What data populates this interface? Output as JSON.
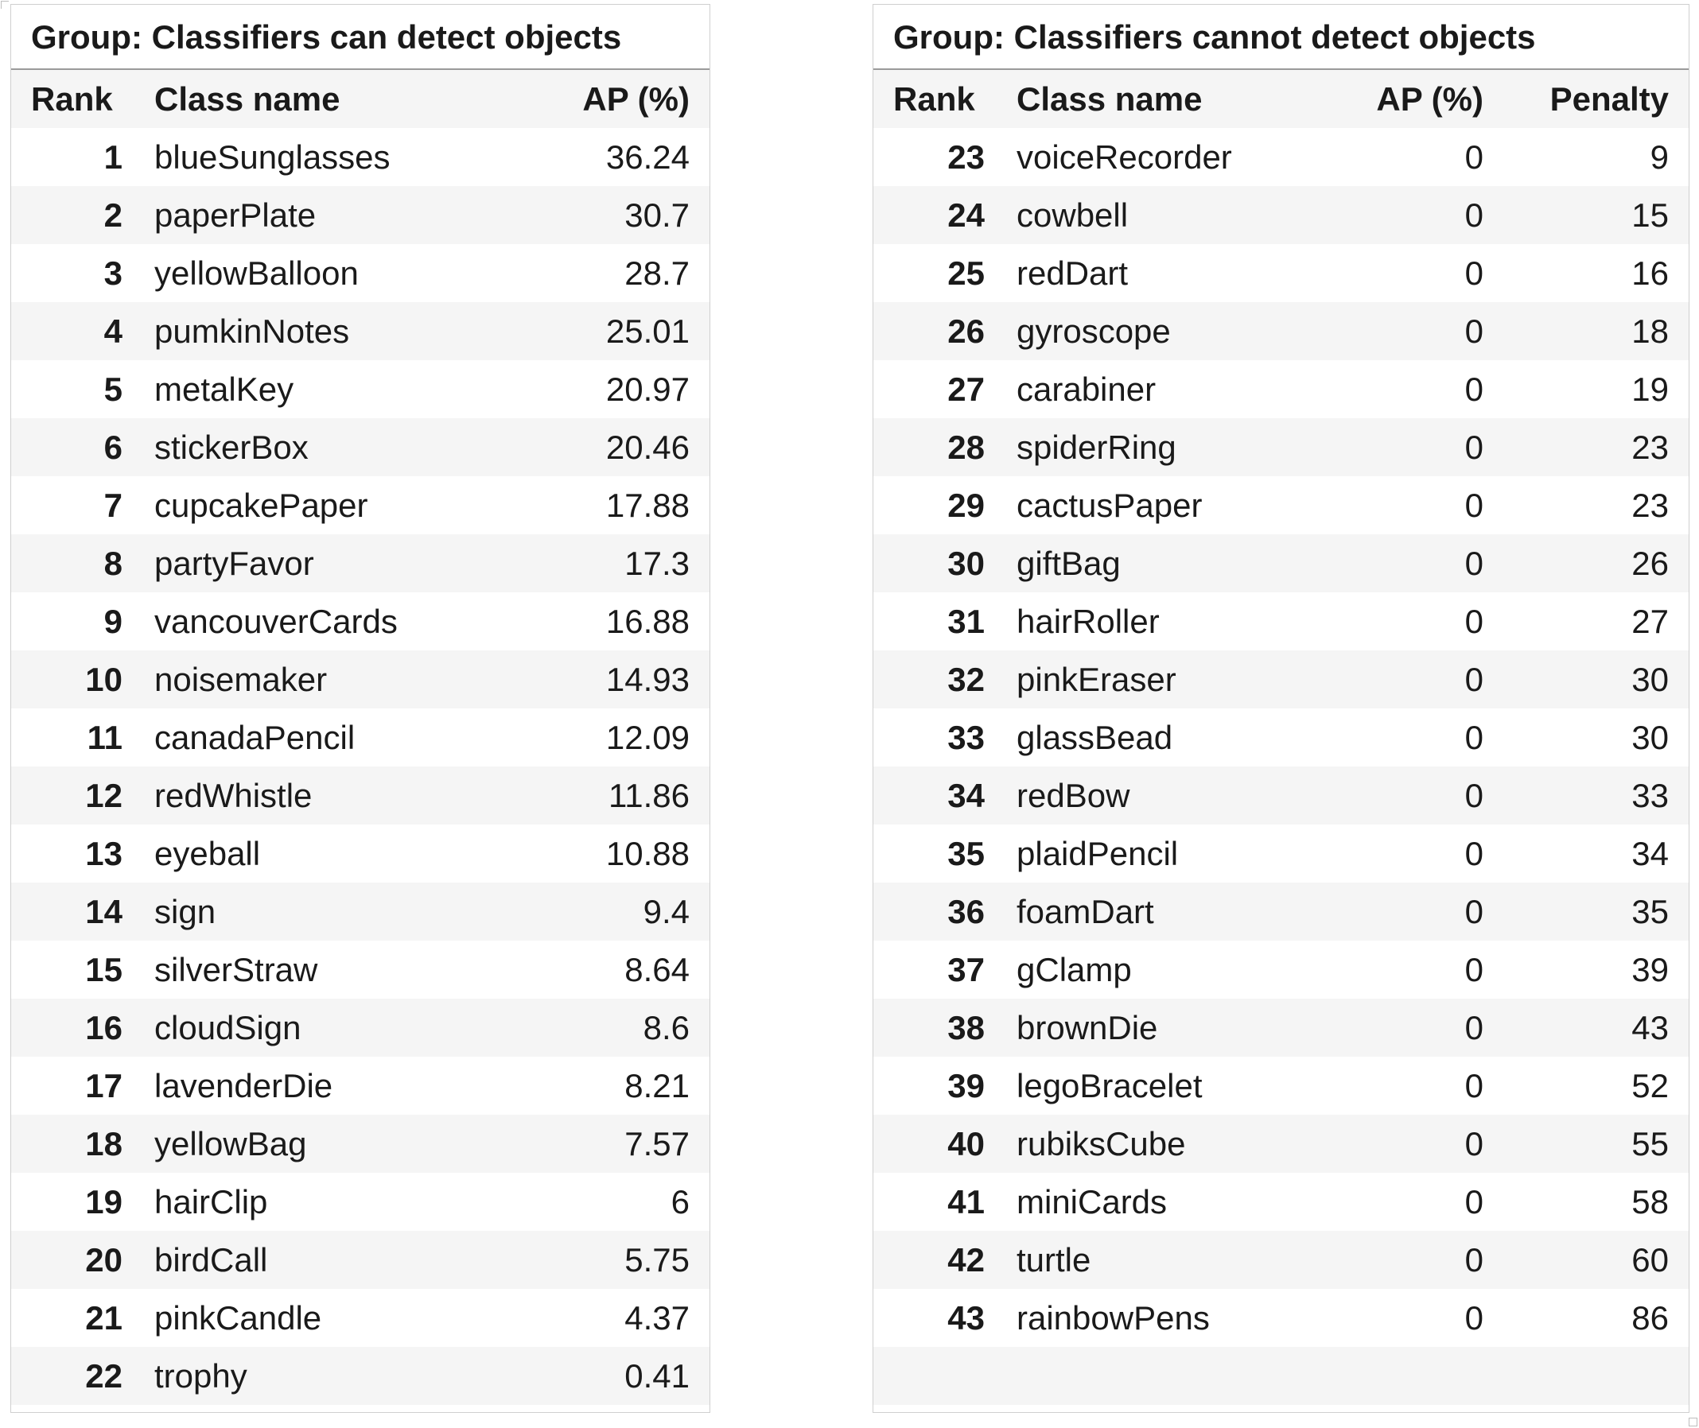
{
  "left": {
    "title": "Group: Classifiers can detect objects",
    "headers": {
      "rank": "Rank",
      "name": "Class name",
      "ap": "AP (%)"
    },
    "rows": [
      {
        "rank": "1",
        "name": "blueSunglasses",
        "ap": "36.24"
      },
      {
        "rank": "2",
        "name": "paperPlate",
        "ap": "30.7"
      },
      {
        "rank": "3",
        "name": "yellowBalloon",
        "ap": "28.7"
      },
      {
        "rank": "4",
        "name": "pumkinNotes",
        "ap": "25.01"
      },
      {
        "rank": "5",
        "name": "metalKey",
        "ap": "20.97"
      },
      {
        "rank": "6",
        "name": "stickerBox",
        "ap": "20.46"
      },
      {
        "rank": "7",
        "name": "cupcakePaper",
        "ap": "17.88"
      },
      {
        "rank": "8",
        "name": "partyFavor",
        "ap": "17.3"
      },
      {
        "rank": "9",
        "name": "vancouverCards",
        "ap": "16.88"
      },
      {
        "rank": "10",
        "name": "noisemaker",
        "ap": "14.93"
      },
      {
        "rank": "11",
        "name": "canadaPencil",
        "ap": "12.09"
      },
      {
        "rank": "12",
        "name": "redWhistle",
        "ap": "11.86"
      },
      {
        "rank": "13",
        "name": "eyeball",
        "ap": "10.88"
      },
      {
        "rank": "14",
        "name": "sign",
        "ap": "9.4"
      },
      {
        "rank": "15",
        "name": "silverStraw",
        "ap": "8.64"
      },
      {
        "rank": "16",
        "name": "cloudSign",
        "ap": "8.6"
      },
      {
        "rank": "17",
        "name": "lavenderDie",
        "ap": "8.21"
      },
      {
        "rank": "18",
        "name": "yellowBag",
        "ap": "7.57"
      },
      {
        "rank": "19",
        "name": "hairClip",
        "ap": "6"
      },
      {
        "rank": "20",
        "name": "birdCall",
        "ap": "5.75"
      },
      {
        "rank": "21",
        "name": "pinkCandle",
        "ap": "4.37"
      },
      {
        "rank": "22",
        "name": "trophy",
        "ap": "0.41"
      }
    ]
  },
  "right": {
    "title": "Group: Classifiers cannot detect objects",
    "headers": {
      "rank": "Rank",
      "name": "Class name",
      "ap": "AP (%)",
      "penalty": "Penalty"
    },
    "rows": [
      {
        "rank": "23",
        "name": "voiceRecorder",
        "ap": "0",
        "penalty": "9"
      },
      {
        "rank": "24",
        "name": "cowbell",
        "ap": "0",
        "penalty": "15"
      },
      {
        "rank": "25",
        "name": "redDart",
        "ap": "0",
        "penalty": "16"
      },
      {
        "rank": "26",
        "name": "gyroscope",
        "ap": "0",
        "penalty": "18"
      },
      {
        "rank": "27",
        "name": "carabiner",
        "ap": "0",
        "penalty": "19"
      },
      {
        "rank": "28",
        "name": "spiderRing",
        "ap": "0",
        "penalty": "23"
      },
      {
        "rank": "29",
        "name": "cactusPaper",
        "ap": "0",
        "penalty": "23"
      },
      {
        "rank": "30",
        "name": "giftBag",
        "ap": "0",
        "penalty": "26"
      },
      {
        "rank": "31",
        "name": "hairRoller",
        "ap": "0",
        "penalty": "27"
      },
      {
        "rank": "32",
        "name": "pinkEraser",
        "ap": "0",
        "penalty": "30"
      },
      {
        "rank": "33",
        "name": "glassBead",
        "ap": "0",
        "penalty": "30"
      },
      {
        "rank": "34",
        "name": "redBow",
        "ap": "0",
        "penalty": "33"
      },
      {
        "rank": "35",
        "name": "plaidPencil",
        "ap": "0",
        "penalty": "34"
      },
      {
        "rank": "36",
        "name": "foamDart",
        "ap": "0",
        "penalty": "35"
      },
      {
        "rank": "37",
        "name": "gClamp",
        "ap": "0",
        "penalty": "39"
      },
      {
        "rank": "38",
        "name": "brownDie",
        "ap": "0",
        "penalty": "43"
      },
      {
        "rank": "39",
        "name": "legoBracelet",
        "ap": "0",
        "penalty": "52"
      },
      {
        "rank": "40",
        "name": "rubiksCube",
        "ap": "0",
        "penalty": "55"
      },
      {
        "rank": "41",
        "name": "miniCards",
        "ap": "0",
        "penalty": "58"
      },
      {
        "rank": "42",
        "name": "turtle",
        "ap": "0",
        "penalty": "60"
      },
      {
        "rank": "43",
        "name": "rainbowPens",
        "ap": "0",
        "penalty": "86"
      }
    ]
  }
}
